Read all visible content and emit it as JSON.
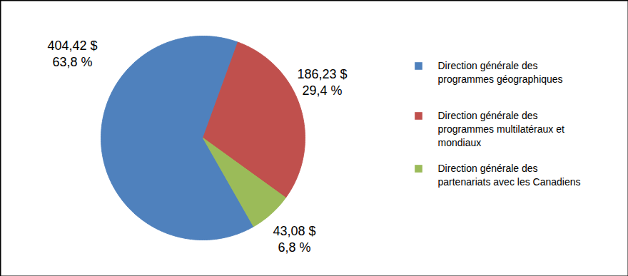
{
  "chart_data": {
    "type": "pie",
    "categories": [
      "Direction générale des programmes géographiques",
      "Direction générale des programmes multilatéraux et mondiaux",
      "Direction générale des partenariats avec les Canadiens"
    ],
    "values": [
      63.8,
      29.4,
      6.8
    ],
    "value_labels": [
      "63,8 %",
      "29,4 %",
      "6,8 %"
    ],
    "amounts": [
      404.42,
      186.23,
      43.08
    ],
    "amount_labels": [
      "404,42 $",
      "186,23 $",
      "43,08 $"
    ],
    "colors": [
      "#4f81bd",
      "#c0504d",
      "#9bbb59"
    ],
    "legend": "right",
    "data_labels": true
  }
}
